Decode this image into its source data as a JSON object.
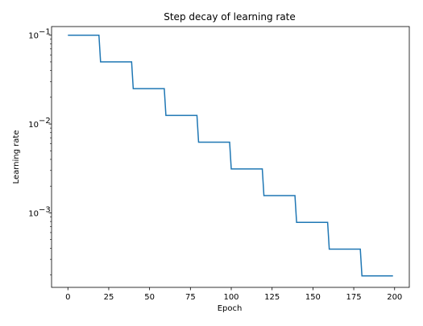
{
  "chart_data": {
    "type": "line",
    "title": "Step decay of learning rate",
    "xlabel": "Epoch",
    "ylabel": "Learning rate",
    "yscale": "log",
    "grid": false,
    "color": "#1f77b4",
    "xlim": [
      -10,
      209
    ],
    "ylim": [
      0.000145,
      0.125
    ],
    "x_ticks": [
      0,
      25,
      50,
      75,
      100,
      125,
      150,
      175,
      200
    ],
    "y_ticks": [
      {
        "value": 0.1,
        "mantissa": "10",
        "exp": "−1"
      },
      {
        "value": 0.01,
        "mantissa": "10",
        "exp": "−2"
      },
      {
        "value": 0.001,
        "mantissa": "10",
        "exp": "−3"
      }
    ],
    "series": [
      {
        "x": [
          0,
          19,
          20,
          39,
          40,
          59,
          60,
          79,
          80,
          99,
          100,
          119,
          120,
          139,
          140,
          159,
          160,
          179,
          180,
          199
        ],
        "y": [
          0.1,
          0.1,
          0.05,
          0.05,
          0.025,
          0.025,
          0.0125,
          0.0125,
          0.00625,
          0.00625,
          0.003125,
          0.003125,
          0.0015625,
          0.0015625,
          0.00078125,
          0.00078125,
          0.000390625,
          0.000390625,
          0.0001953125,
          0.0001953125
        ]
      }
    ]
  }
}
